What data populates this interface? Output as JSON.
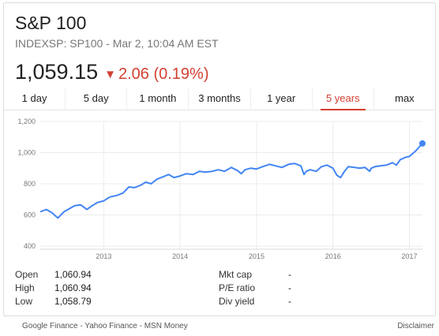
{
  "header": {
    "title": "S&P 100",
    "subtitle": "INDEXSP: SP100 - Mar 2, 10:04 AM EST",
    "price": "1,059.15",
    "change_arrow": "🡇",
    "change": "2.06 (0.19%)"
  },
  "tabs": [
    {
      "label": "1 day"
    },
    {
      "label": "5 day"
    },
    {
      "label": "1 month"
    },
    {
      "label": "3 months"
    },
    {
      "label": "1 year"
    },
    {
      "label": "5 years",
      "active": true
    },
    {
      "label": "max"
    }
  ],
  "chart_data": {
    "type": "line",
    "ylim": [
      400,
      1200
    ],
    "yticks": [
      "400",
      "600",
      "800",
      "1,000",
      "1,200"
    ],
    "xticks": [
      "2013",
      "2014",
      "2015",
      "2016",
      "2017"
    ],
    "xrange": [
      2012.17,
      2017.17
    ],
    "line_color": "#4285f4",
    "series": [
      {
        "x": [
          2012.17,
          2012.25,
          2012.32,
          2012.4,
          2012.48,
          2012.55,
          2012.62,
          2012.7,
          2012.78,
          2012.85,
          2012.92,
          2013.0,
          2013.08,
          2013.17,
          2013.25,
          2013.33,
          2013.4,
          2013.48,
          2013.55,
          2013.62,
          2013.7,
          2013.78,
          2013.85,
          2013.92,
          2014.0,
          2014.08,
          2014.17,
          2014.25,
          2014.33,
          2014.42,
          2014.5,
          2014.58,
          2014.67,
          2014.75,
          2014.8,
          2014.85,
          2014.92,
          2015.0,
          2015.08,
          2015.17,
          2015.25,
          2015.33,
          2015.42,
          2015.5,
          2015.58,
          2015.62,
          2015.65,
          2015.7,
          2015.78,
          2015.85,
          2015.92,
          2016.0,
          2016.05,
          2016.1,
          2016.15,
          2016.2,
          2016.28,
          2016.35,
          2016.42,
          2016.48,
          2016.5,
          2016.55,
          2016.62,
          2016.7,
          2016.78,
          2016.83,
          2016.88,
          2016.95,
          2017.0,
          2017.08,
          2017.17
        ],
        "y": [
          620,
          635,
          615,
          580,
          620,
          640,
          660,
          665,
          635,
          660,
          680,
          690,
          715,
          725,
          740,
          780,
          775,
          790,
          810,
          800,
          830,
          845,
          860,
          840,
          850,
          865,
          860,
          880,
          875,
          880,
          890,
          880,
          905,
          885,
          865,
          890,
          900,
          895,
          910,
          925,
          915,
          905,
          925,
          930,
          915,
          860,
          880,
          890,
          880,
          910,
          920,
          900,
          855,
          840,
          880,
          910,
          905,
          900,
          905,
          880,
          900,
          910,
          915,
          920,
          935,
          920,
          955,
          970,
          975,
          1010,
          1059
        ]
      }
    ]
  },
  "stats": {
    "left": [
      {
        "label": "Open",
        "value": "1,060.94"
      },
      {
        "label": "High",
        "value": "1,060.94"
      },
      {
        "label": "Low",
        "value": "1,058.79"
      }
    ],
    "right": [
      {
        "label": "Mkt cap",
        "value": "-"
      },
      {
        "label": "P/E ratio",
        "value": "-"
      },
      {
        "label": "Div yield",
        "value": "-"
      }
    ]
  },
  "footer": {
    "sources": "Google Finance - Yahoo Finance - MSN Money",
    "disclaimer": "Disclaimer"
  }
}
